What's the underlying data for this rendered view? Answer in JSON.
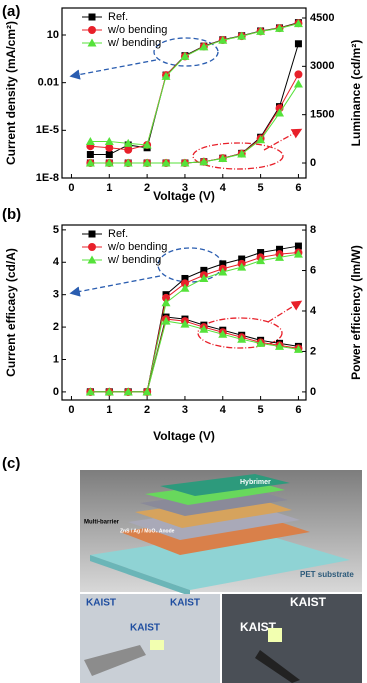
{
  "panel_labels": [
    "(a)",
    "(b)",
    "(c)"
  ],
  "chart_data": [
    {
      "type": "line",
      "xlabel": "Voltage (V)",
      "ylabel": "Current density (mA/cm²)",
      "y2label": "Luminance (cd/m²)",
      "x": [
        0.5,
        1,
        1.5,
        2,
        2.5,
        3,
        3.5,
        4,
        4.5,
        5,
        5.5,
        6
      ],
      "xlim": [
        -0.25,
        6.2
      ],
      "xticks": [
        0,
        1,
        2,
        3,
        4,
        5,
        6
      ],
      "ylog": true,
      "ylim": [
        1e-08,
        500
      ],
      "yticks": [
        {
          "value": 1e-08,
          "label": "1E-8"
        },
        {
          "value": 1e-05,
          "label": "1E-5"
        },
        0.01,
        10
      ],
      "y2lim": [
        -465,
        4810
      ],
      "y2ticks": [
        0,
        1500,
        3000,
        4500
      ],
      "legend": "upper left",
      "grid": false,
      "series": [
        {
          "name": "Ref.",
          "color": "#000000",
          "marker": "square",
          "values": [
            3e-07,
            3e-07,
            1.2e-06,
            8e-07,
            0.03,
            0.5,
            2,
            5,
            9,
            18,
            28,
            60
          ]
        },
        {
          "name": "w/o bending",
          "color": "#e8202a",
          "marker": "circle",
          "values": [
            1e-06,
            8e-07,
            6e-07,
            1.2e-06,
            0.03,
            0.45,
            1.9,
            4.8,
            8.5,
            17,
            27,
            55
          ]
        },
        {
          "name": "w/ bending",
          "color": "#55e23a",
          "marker": "triangle",
          "values": [
            2e-06,
            2e-06,
            1.5e-06,
            1.2e-06,
            0.025,
            0.45,
            1.8,
            4.7,
            8.5,
            17,
            26,
            52
          ]
        },
        {
          "axis": "y2",
          "color": "#000000",
          "marker": "square",
          "values": [
            0,
            0,
            0,
            0,
            0,
            0,
            40,
            150,
            300,
            800,
            1750,
            3700
          ]
        },
        {
          "axis": "y2",
          "color": "#e8202a",
          "marker": "circle",
          "values": [
            0,
            0,
            0,
            0,
            0,
            0,
            40,
            150,
            290,
            760,
            1700,
            2750
          ]
        },
        {
          "axis": "y2",
          "color": "#55e23a",
          "marker": "triangle",
          "values": [
            0,
            0,
            0,
            0,
            0,
            0,
            40,
            140,
            280,
            720,
            1550,
            2450
          ]
        }
      ]
    },
    {
      "type": "line",
      "xlabel": "Voltage (V)",
      "ylabel": "Current efficacy (cd/A)",
      "y2label": "Power efficiency (lm/W)",
      "x": [
        0.5,
        1,
        1.5,
        2,
        2.5,
        3,
        3.5,
        4,
        4.5,
        5,
        5.5,
        6
      ],
      "xlim": [
        -0.25,
        6.2
      ],
      "xticks": [
        0,
        1,
        2,
        3,
        4,
        5,
        6
      ],
      "ylog": false,
      "ylim": [
        -0.25,
        5.15
      ],
      "yticks": [
        0,
        1,
        2,
        3,
        4,
        5
      ],
      "y2lim": [
        -0.4,
        8.25
      ],
      "y2ticks": [
        0,
        2,
        4,
        6,
        8
      ],
      "legend": "upper left",
      "grid": false,
      "series": [
        {
          "name": "Ref.",
          "color": "#000000",
          "marker": "square",
          "values": [
            0,
            0,
            0,
            0,
            3.0,
            3.5,
            3.75,
            3.95,
            4.1,
            4.3,
            4.4,
            4.5
          ]
        },
        {
          "name": "w/o bending",
          "color": "#e8202a",
          "marker": "circle",
          "values": [
            0,
            0,
            0,
            0,
            2.9,
            3.35,
            3.6,
            3.8,
            3.95,
            4.15,
            4.25,
            4.3
          ]
        },
        {
          "name": "w/ bending",
          "color": "#55e23a",
          "marker": "triangle",
          "values": [
            0,
            0,
            0,
            0,
            2.75,
            3.2,
            3.5,
            3.7,
            3.85,
            4.05,
            4.15,
            4.25
          ]
        },
        {
          "axis": "y2",
          "color": "#000000",
          "marker": "square",
          "values": [
            0,
            0,
            0,
            0,
            3.7,
            3.6,
            3.3,
            3.05,
            2.8,
            2.55,
            2.4,
            2.25
          ]
        },
        {
          "axis": "y2",
          "color": "#e8202a",
          "marker": "circle",
          "values": [
            0,
            0,
            0,
            0,
            3.6,
            3.5,
            3.2,
            2.95,
            2.7,
            2.45,
            2.3,
            2.15
          ]
        },
        {
          "axis": "y2",
          "color": "#55e23a",
          "marker": "triangle",
          "values": [
            0,
            0,
            0,
            0,
            3.5,
            3.35,
            3.1,
            2.85,
            2.6,
            2.4,
            2.25,
            2.1
          ]
        }
      ]
    }
  ],
  "photo": {
    "layers": [
      "Hybrimer",
      "Multi-barrier",
      "ZnS / Ag / MoO₃ Anode"
    ],
    "substrate": "PET substrate",
    "logo": "KAIST"
  }
}
